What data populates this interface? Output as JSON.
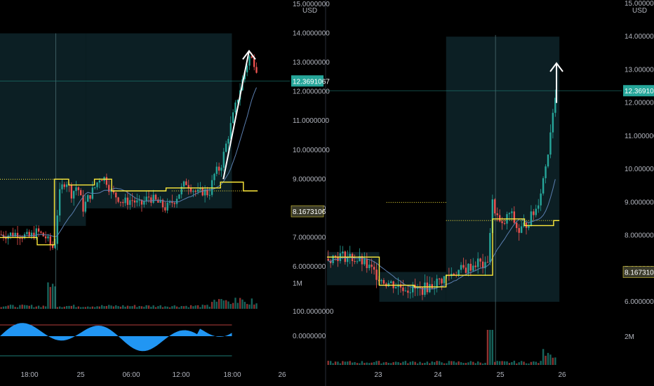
{
  "colors": {
    "background": "#000000",
    "up_candle": "#26a69a",
    "down_candle": "#ef5350",
    "avg_line": "#ffeb3b",
    "ma_line": "#5b7fb0",
    "range_box": "#0c1f24",
    "oscillator": "#2196f3",
    "arrow": "#ffffff",
    "price_tag_current": "#26a69a",
    "price_tag_avg": "#ffeb3b"
  },
  "chart_data": [
    {
      "type": "candlestick",
      "panel": "left",
      "currency": "USD",
      "y_ticks": [
        "15.0000000",
        "14.0000000",
        "13.0000000",
        "12.0000000",
        "11.0000000",
        "10.0000000",
        "9.0000000",
        "8.0000000",
        "7.0000000",
        "6.0000000"
      ],
      "current_price": "12.3691067",
      "avg_price": "8.1673106",
      "x_ticks": [
        "18:00",
        "25",
        "06:00",
        "12:00",
        "18:00",
        "26"
      ],
      "volume_label": "1M",
      "oscillator_ticks": [
        "100.0000000",
        "0.0000000"
      ],
      "range_box": {
        "price_high": 14.0,
        "price_low": 8.0
      },
      "price_path": [
        [
          0,
          7.1
        ],
        [
          0.03,
          7.1
        ],
        [
          0.06,
          7.15
        ],
        [
          0.1,
          7.0
        ],
        [
          0.13,
          7.2
        ],
        [
          0.16,
          7.0
        ],
        [
          0.18,
          6.7
        ],
        [
          0.19,
          6.6
        ],
        [
          0.2,
          7.8
        ],
        [
          0.21,
          8.6
        ],
        [
          0.23,
          9.0
        ],
        [
          0.25,
          8.5
        ],
        [
          0.27,
          8.8
        ],
        [
          0.29,
          8.0
        ],
        [
          0.31,
          8.4
        ],
        [
          0.33,
          8.7
        ],
        [
          0.35,
          9.1
        ],
        [
          0.37,
          9.0
        ],
        [
          0.39,
          8.5
        ],
        [
          0.41,
          8.4
        ],
        [
          0.43,
          8.2
        ],
        [
          0.46,
          8.3
        ],
        [
          0.49,
          8.1
        ],
        [
          0.52,
          8.4
        ],
        [
          0.55,
          8.2
        ],
        [
          0.58,
          8.0
        ],
        [
          0.61,
          8.3
        ],
        [
          0.63,
          8.6
        ],
        [
          0.65,
          8.9
        ],
        [
          0.67,
          8.7
        ],
        [
          0.69,
          8.5
        ],
        [
          0.71,
          8.6
        ],
        [
          0.73,
          8.5
        ],
        [
          0.75,
          9.2
        ],
        [
          0.77,
          9.4
        ],
        [
          0.79,
          10.2
        ],
        [
          0.81,
          11.0
        ],
        [
          0.83,
          11.8
        ],
        [
          0.85,
          12.5
        ],
        [
          0.87,
          13.2
        ],
        [
          0.89,
          13.0
        ],
        [
          0.9,
          12.7
        ]
      ],
      "avg_steps": [
        [
          0,
          7.0
        ],
        [
          0.13,
          7.0
        ],
        [
          0.13,
          6.75
        ],
        [
          0.19,
          6.75
        ],
        [
          0.19,
          9.0
        ],
        [
          0.24,
          9.0
        ],
        [
          0.24,
          8.8
        ],
        [
          0.33,
          8.8
        ],
        [
          0.33,
          9.0
        ],
        [
          0.39,
          9.0
        ],
        [
          0.39,
          8.6
        ],
        [
          0.58,
          8.6
        ],
        [
          0.58,
          8.7
        ],
        [
          0.77,
          8.7
        ],
        [
          0.77,
          8.9
        ],
        [
          0.85,
          8.9
        ],
        [
          0.85,
          8.6
        ],
        [
          0.9,
          8.6
        ]
      ],
      "arrow": {
        "from": [
          0.78,
          9.0
        ],
        "to": [
          0.87,
          13.4
        ]
      }
    },
    {
      "type": "candlestick",
      "panel": "right",
      "currency": "USD",
      "y_ticks": [
        "15.0000000",
        "14.0000000",
        "13.0000000",
        "12.0000000",
        "11.0000000",
        "10.0000000",
        "9.0000000",
        "8.0000000",
        "7.0000000",
        "6.0000000"
      ],
      "current_price": "12.3691067",
      "avg_price": "8.1673106",
      "x_ticks": [
        "23",
        "24",
        "25",
        "26"
      ],
      "volume_label": "2M",
      "range_boxes": [
        {
          "x_from": 0.0,
          "x_to": 0.18,
          "price_high": 7.5,
          "price_low": 6.5
        },
        {
          "x_from": 0.18,
          "x_to": 0.41,
          "price_high": 6.9,
          "price_low": 6.0
        },
        {
          "x_from": 0.41,
          "x_to": 0.8,
          "price_high": 14.0,
          "price_low": 6.0
        }
      ],
      "price_path": [
        [
          0,
          7.3
        ],
        [
          0.04,
          7.4
        ],
        [
          0.08,
          7.35
        ],
        [
          0.12,
          7.2
        ],
        [
          0.16,
          6.9
        ],
        [
          0.2,
          6.6
        ],
        [
          0.24,
          6.5
        ],
        [
          0.28,
          6.4
        ],
        [
          0.32,
          6.35
        ],
        [
          0.36,
          6.5
        ],
        [
          0.4,
          6.7
        ],
        [
          0.44,
          6.9
        ],
        [
          0.48,
          7.0
        ],
        [
          0.52,
          7.2
        ],
        [
          0.55,
          7.0
        ],
        [
          0.57,
          9.0
        ],
        [
          0.6,
          8.2
        ],
        [
          0.63,
          8.7
        ],
        [
          0.66,
          8.1
        ],
        [
          0.69,
          8.4
        ],
        [
          0.72,
          8.8
        ],
        [
          0.74,
          9.5
        ],
        [
          0.76,
          10.5
        ],
        [
          0.78,
          12.0
        ],
        [
          0.79,
          12.4
        ]
      ],
      "avg_steps": [
        [
          0,
          7.35
        ],
        [
          0.18,
          7.35
        ],
        [
          0.18,
          6.5
        ],
        [
          0.3,
          6.5
        ],
        [
          0.3,
          6.45
        ],
        [
          0.41,
          6.45
        ],
        [
          0.41,
          6.8
        ],
        [
          0.57,
          6.8
        ],
        [
          0.57,
          8.5
        ],
        [
          0.68,
          8.5
        ],
        [
          0.68,
          8.3
        ],
        [
          0.78,
          8.3
        ],
        [
          0.78,
          8.45
        ],
        [
          0.8,
          8.45
        ]
      ],
      "arrow": {
        "from": [
          0.79,
          12.0
        ],
        "to": [
          0.79,
          13.2
        ]
      }
    }
  ]
}
